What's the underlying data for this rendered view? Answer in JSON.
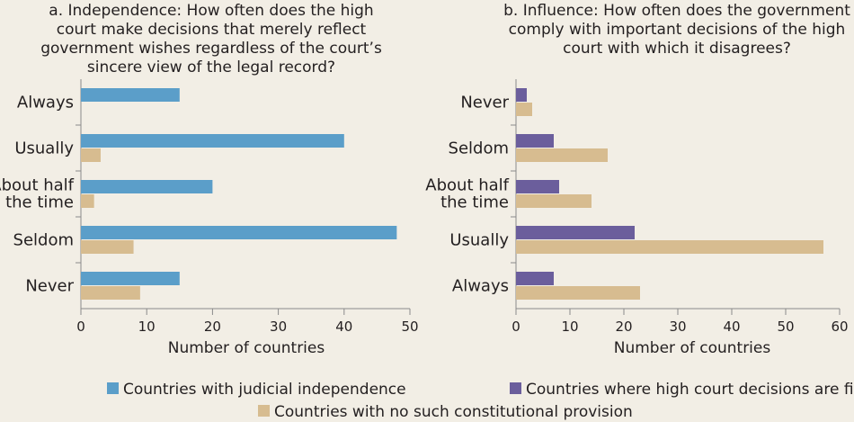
{
  "chart_data": [
    {
      "type": "bar",
      "orientation": "horizontal",
      "title_lines": [
        "a. Independence: How often does the high",
        "court make decisions that merely reflect",
        "government wishes regardless of the court’s",
        "sincere view of the legal record?"
      ],
      "categories": [
        [
          "Always"
        ],
        [
          "Usually"
        ],
        [
          "About half",
          "the time"
        ],
        [
          "Seldom"
        ],
        [
          "Never"
        ]
      ],
      "series": [
        {
          "name": "Countries with judicial independence",
          "values": [
            15,
            40,
            20,
            48,
            15
          ]
        },
        {
          "name": "Countries with no such constitutional provision",
          "values": [
            0,
            3,
            2,
            8,
            9
          ]
        }
      ],
      "xlabel": "Number of countries",
      "xlim": [
        0,
        50
      ],
      "xticks": [
        0,
        10,
        20,
        30,
        40,
        50
      ]
    },
    {
      "type": "bar",
      "orientation": "horizontal",
      "title_lines": [
        "b. Influence: How often does the government",
        "comply with important decisions of the high",
        "court with which it disagrees?"
      ],
      "categories": [
        [
          "Never"
        ],
        [
          "Seldom"
        ],
        [
          "About half",
          "the time"
        ],
        [
          "Usually"
        ],
        [
          "Always"
        ]
      ],
      "series": [
        {
          "name": "Countries where high court decisions are final",
          "values": [
            2,
            7,
            8,
            22,
            7
          ]
        },
        {
          "name": "Countries with no such constitutional provision",
          "values": [
            3,
            17,
            14,
            57,
            23
          ]
        }
      ],
      "xlabel": "Number of countries",
      "xlim": [
        0,
        60
      ],
      "xticks": [
        0,
        10,
        20,
        30,
        40,
        50,
        60
      ]
    }
  ],
  "colors": {
    "judicial_independence": "#5b9ec9",
    "no_provision": "#d7bc90",
    "decisions_final": "#6b5e9c",
    "axis": "#8a8a8a",
    "background": "#f2eee5"
  },
  "legend": {
    "judicial_independence": "Countries with judicial independence",
    "decisions_final": "Countries where high court decisions are final",
    "no_provision": "Countries with no such constitutional provision"
  }
}
